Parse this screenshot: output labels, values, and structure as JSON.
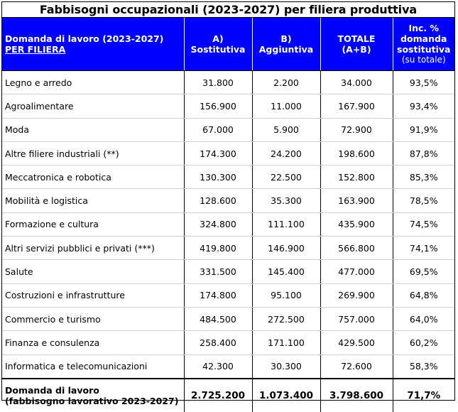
{
  "title": "Fabbisogni occupazionali (2023-2027) per filiera produttiva",
  "header": {
    "col1_line1": "Domanda di lavoro (2023-2027)",
    "col1_line2": "PER FILIERA",
    "col2_line1": "A)",
    "col2_line2": "Sostitutiva",
    "col3_line1": "B)",
    "col3_line2": "Aggiuntiva",
    "col4_line1": "TOTALE",
    "col4_line2": "(A+B)",
    "col5_line1": "Inc. %",
    "col5_line2": "domanda",
    "col5_line3": "sostitutiva",
    "col5_line4": "(su totale)"
  },
  "rows": [
    {
      "filiera": "Legno e arredo",
      "sostitutiva": "31.800",
      "aggiuntiva": "2.200",
      "totale": "34.000",
      "inc": "93,5%"
    },
    {
      "filiera": "Agroalimentare",
      "sostitutiva": "156.900",
      "aggiuntiva": "11.000",
      "totale": "167.900",
      "inc": "93,4%"
    },
    {
      "filiera": "Moda",
      "sostitutiva": "67.000",
      "aggiuntiva": "5.900",
      "totale": "72.900",
      "inc": "91,9%"
    },
    {
      "filiera": "Altre filiere industriali (**)",
      "sostitutiva": "174.300",
      "aggiuntiva": "24.200",
      "totale": "198.600",
      "inc": "87,8%"
    },
    {
      "filiera": "Meccatronica e robotica",
      "sostitutiva": "130.300",
      "aggiuntiva": "22.500",
      "totale": "152.800",
      "inc": "85,3%"
    },
    {
      "filiera": "Mobilità e logistica",
      "sostitutiva": "128.600",
      "aggiuntiva": "35.300",
      "totale": "163.900",
      "inc": "78,5%"
    },
    {
      "filiera": "Formazione e cultura",
      "sostitutiva": "324.800",
      "aggiuntiva": "111.100",
      "totale": "435.900",
      "inc": "74,5%"
    },
    {
      "filiera": "Altri servizi pubblici e privati (***)",
      "sostitutiva": "419.800",
      "aggiuntiva": "146.900",
      "totale": "566.800",
      "inc": "74,1%"
    },
    {
      "filiera": "Salute",
      "sostitutiva": "331.500",
      "aggiuntiva": "145.400",
      "totale": "477.000",
      "inc": "69,5%"
    },
    {
      "filiera": "Costruzioni e infrastrutture",
      "sostitutiva": "174.800",
      "aggiuntiva": "95.100",
      "totale": "269.900",
      "inc": "64,8%"
    },
    {
      "filiera": "Commercio e turismo",
      "sostitutiva": "484.500",
      "aggiuntiva": "272.500",
      "totale": "757.000",
      "inc": "64,0%"
    },
    {
      "filiera": "Finanza e consulenza",
      "sostitutiva": "258.400",
      "aggiuntiva": "171.100",
      "totale": "429.500",
      "inc": "60,2%"
    },
    {
      "filiera": "Informatica e telecomunicazioni",
      "sostitutiva": "42.300",
      "aggiuntiva": "30.300",
      "totale": "72.600",
      "inc": "58,3%"
    }
  ],
  "footer": {
    "label_line1": "Domanda di lavoro",
    "label_line2": "(fabbisogno lavorativo 2023-2027)",
    "sostitutiva": "2.725.200",
    "aggiuntiva": "1.073.400",
    "totale": "3.798.600",
    "inc": "71,7%"
  },
  "colors": {
    "header_bg": "#0000ff",
    "header_text": "#ffffff"
  }
}
